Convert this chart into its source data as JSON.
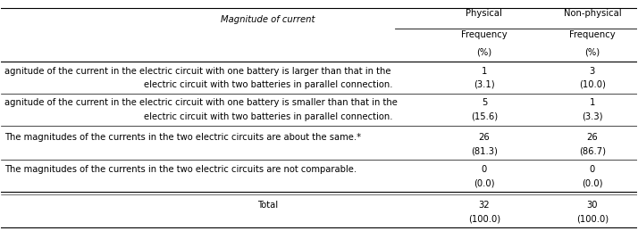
{
  "title_col": "Magnitude of current",
  "col_headers": [
    [
      "Physical",
      "Non-physical"
    ],
    [
      "Frequency",
      "Frequency"
    ],
    [
      "(%)",
      "(%)"
    ]
  ],
  "rows": [
    {
      "label_lines": [
        "agnitude of the current in the electric circuit with one battery is larger than that in the",
        "electric circuit with two batteries in parallel connection."
      ],
      "physical": [
        "1",
        "(3.1)"
      ],
      "nonphysical": [
        "3",
        "(10.0)"
      ]
    },
    {
      "label_lines": [
        "agnitude of the current in the electric circuit with one battery is smaller than that in the",
        "electric circuit with two batteries in parallel connection."
      ],
      "physical": [
        "5",
        "(15.6)"
      ],
      "nonphysical": [
        "1",
        "(3.3)"
      ]
    },
    {
      "label_lines": [
        "The magnitudes of the currents in the two electric circuits are about the same.*"
      ],
      "physical": [
        "26",
        "(81.3)"
      ],
      "nonphysical": [
        "26",
        "(86.7)"
      ]
    },
    {
      "label_lines": [
        "The magnitudes of the currents in the two electric circuits are not comparable."
      ],
      "physical": [
        "0",
        "(0.0)"
      ],
      "nonphysical": [
        "0",
        "(0.0)"
      ]
    },
    {
      "label_lines": [
        "Total"
      ],
      "physical": [
        "32",
        "(100.0)"
      ],
      "nonphysical": [
        "30",
        "(100.0)"
      ],
      "is_total": true
    }
  ],
  "figsize": [
    7.14,
    2.59
  ],
  "dpi": 100,
  "fontsize": 7.2,
  "bg_color": "#ffffff"
}
